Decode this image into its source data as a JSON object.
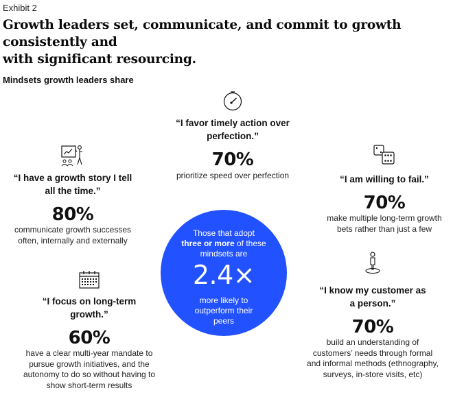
{
  "exhibit": "Exhibit 2",
  "headline": {
    "line1": "Growth leaders set, communicate, and commit to growth consistently and",
    "line2": "with significant resourcing."
  },
  "section_title": "Mindsets growth leaders share",
  "mindsets": [
    {
      "icon": "speedometer-icon",
      "quote_lines": [
        "“I favor timely action over",
        "perfection.”"
      ],
      "percent": "70%",
      "desc_lines": [
        "prioritize speed over perfection"
      ]
    },
    {
      "icon": "presentation-board-icon",
      "quote_lines": [
        "“I have a growth story I tell",
        "all the time.”"
      ],
      "percent": "80%",
      "desc_lines": [
        "communicate growth successes",
        "often, internally and externally"
      ]
    },
    {
      "icon": "dice-icon",
      "quote_lines": [
        "“I am willing to fail.”"
      ],
      "percent": "70%",
      "desc_lines": [
        "make multiple long-term growth",
        "bets rather than just a few"
      ]
    },
    {
      "icon": "calendar-icon",
      "quote_lines": [
        "“I focus on long-term",
        "growth.”"
      ],
      "percent": "60%",
      "desc_lines": [
        "have a clear multi-year mandate to",
        "pursue growth initiatives, and the",
        "autonomy to do so without having to",
        "show short-term results"
      ]
    },
    {
      "icon": "person-pin-icon",
      "quote_lines": [
        "“I know my customer as",
        "a person.”"
      ],
      "percent": "70%",
      "desc_lines": [
        "build an understanding of",
        "customers’ needs through formal",
        "and informal methods (ethnography,",
        "surveys, in-store visits, etc)"
      ]
    }
  ],
  "center": {
    "line1": "Those that adopt",
    "line2_bold": "three or more",
    "line2_rest": " of these",
    "line3": "mindsets are",
    "multiplier": "2.4×",
    "line4": "more likely to",
    "line5": "outperform their",
    "line6": "peers",
    "color": "#2251ff"
  }
}
